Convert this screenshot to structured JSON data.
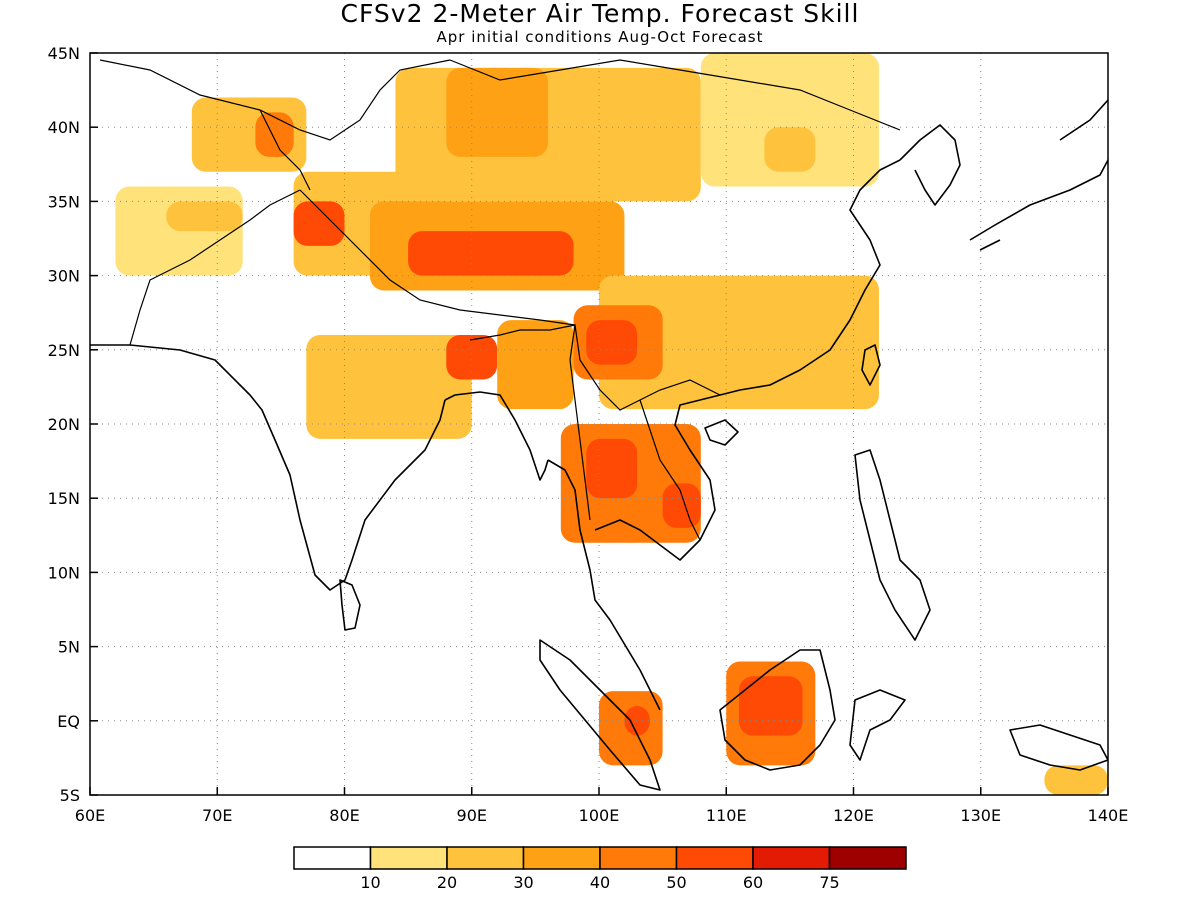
{
  "title": "CFSv2 2-Meter Air Temp. Forecast Skill",
  "subtitle": "Apr initial conditions  Aug-Oct Forecast",
  "axes": {
    "lon_labels": [
      "60E",
      "70E",
      "80E",
      "90E",
      "100E",
      "110E",
      "120E",
      "130E",
      "140E"
    ],
    "lat_labels": [
      "45N",
      "40N",
      "35N",
      "30N",
      "25N",
      "20N",
      "15N",
      "10N",
      "5N",
      "EQ",
      "5S"
    ],
    "lon_range": [
      60,
      140
    ],
    "lat_range": [
      -5,
      45
    ],
    "grid": "dotted"
  },
  "colorbar": {
    "colors": [
      "#ffffff",
      "#ffe27a",
      "#ffc23c",
      "#ffa114",
      "#ff7a08",
      "#ff4a05",
      "#e31b05",
      "#9e0000"
    ],
    "labels": [
      "10",
      "20",
      "30",
      "40",
      "50",
      "60",
      "75"
    ]
  },
  "chart_data": {
    "type": "heatmap",
    "variable": "2-Meter Air Temp. Forecast Skill",
    "bins": [
      0,
      10,
      20,
      30,
      40,
      50,
      60,
      75,
      100
    ],
    "regions": [
      {
        "lon": [
          62,
          72
        ],
        "lat": [
          30,
          36
        ],
        "bin": 1
      },
      {
        "lon": [
          66,
          72
        ],
        "lat": [
          33,
          35
        ],
        "bin": 2
      },
      {
        "lon": [
          68,
          77
        ],
        "lat": [
          37,
          42
        ],
        "bin": 2
      },
      {
        "lon": [
          73,
          76
        ],
        "lat": [
          38,
          41
        ],
        "bin": 4
      },
      {
        "lon": [
          76,
          88
        ],
        "lat": [
          30,
          37
        ],
        "bin": 2
      },
      {
        "lon": [
          76,
          80
        ],
        "lat": [
          32,
          35
        ],
        "bin": 5
      },
      {
        "lon": [
          82,
          102
        ],
        "lat": [
          29,
          35
        ],
        "bin": 3
      },
      {
        "lon": [
          85,
          98
        ],
        "lat": [
          30,
          33
        ],
        "bin": 5
      },
      {
        "lon": [
          84,
          108
        ],
        "lat": [
          35,
          44
        ],
        "bin": 2
      },
      {
        "lon": [
          88,
          96
        ],
        "lat": [
          38,
          44
        ],
        "bin": 3
      },
      {
        "lon": [
          108,
          122
        ],
        "lat": [
          36,
          45
        ],
        "bin": 1
      },
      {
        "lon": [
          113,
          117
        ],
        "lat": [
          37,
          40
        ],
        "bin": 2
      },
      {
        "lon": [
          100,
          122
        ],
        "lat": [
          21,
          30
        ],
        "bin": 2
      },
      {
        "lon": [
          98,
          105
        ],
        "lat": [
          23,
          28
        ],
        "bin": 4
      },
      {
        "lon": [
          99,
          103
        ],
        "lat": [
          24,
          27
        ],
        "bin": 5
      },
      {
        "lon": [
          77,
          90
        ],
        "lat": [
          19,
          26
        ],
        "bin": 2
      },
      {
        "lon": [
          88,
          92
        ],
        "lat": [
          23,
          26
        ],
        "bin": 5
      },
      {
        "lon": [
          92,
          98
        ],
        "lat": [
          21,
          27
        ],
        "bin": 3
      },
      {
        "lon": [
          97,
          108
        ],
        "lat": [
          12,
          20
        ],
        "bin": 4
      },
      {
        "lon": [
          99,
          103
        ],
        "lat": [
          15,
          19
        ],
        "bin": 5
      },
      {
        "lon": [
          105,
          108
        ],
        "lat": [
          13,
          16
        ],
        "bin": 5
      },
      {
        "lon": [
          110,
          117
        ],
        "lat": [
          -3,
          4
        ],
        "bin": 4
      },
      {
        "lon": [
          111,
          116
        ],
        "lat": [
          -1,
          3
        ],
        "bin": 5
      },
      {
        "lon": [
          100,
          105
        ],
        "lat": [
          -3,
          2
        ],
        "bin": 4
      },
      {
        "lon": [
          102,
          104
        ],
        "lat": [
          -1,
          1
        ],
        "bin": 5
      },
      {
        "lon": [
          131,
          140
        ],
        "lat": [
          17,
          27
        ],
        "bin": 0
      },
      {
        "lon": [
          135,
          140
        ],
        "lat": [
          -5,
          -3
        ],
        "bin": 2
      }
    ]
  }
}
